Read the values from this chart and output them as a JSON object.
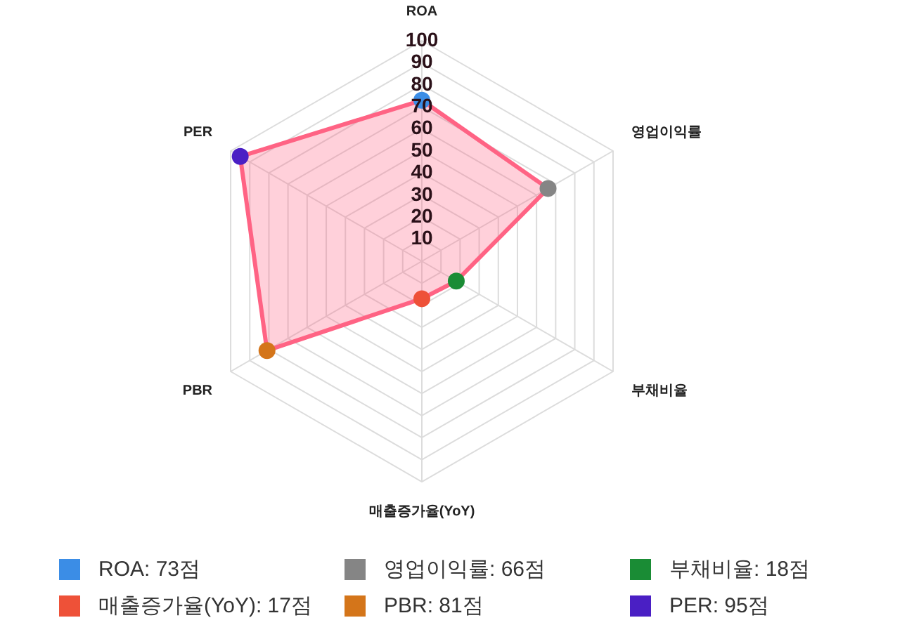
{
  "chart_data": {
    "type": "radar",
    "categories": [
      "ROA",
      "영업이익률",
      "부채비율",
      "매출증가율(YoY)",
      "PBR",
      "PER"
    ],
    "series": [
      {
        "color": "#ff6384",
        "values": [
          73,
          66,
          18,
          17,
          81,
          95
        ],
        "colors": [
          "#3b8de6",
          "#858585",
          "#1a8c35",
          "#ee5138",
          "#d4751a",
          "#4a1fc4"
        ]
      }
    ],
    "ylim": [
      0,
      100
    ],
    "yticks": [
      10,
      20,
      30,
      40,
      50,
      60,
      70,
      80,
      90,
      100
    ],
    "grid": true,
    "marker": "circle",
    "line_style": "solid",
    "annotations": [
      "ROA: 73점",
      "영업이익률: 66점",
      "부채비율: 18점",
      "매출증가율(YoY): 17점",
      "PBR: 81점",
      "PER: 95점"
    ]
  }
}
